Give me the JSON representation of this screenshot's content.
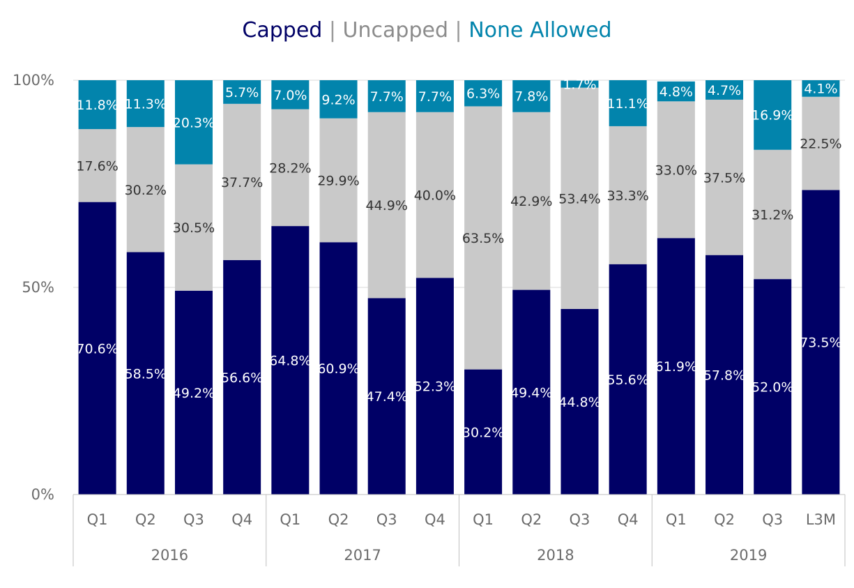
{
  "legend_title": {
    "capped": "Capped",
    "uncapped": "Uncapped",
    "none_allowed": "None Allowed",
    "separator": "|"
  },
  "colors": {
    "capped": "#000066",
    "uncapped": "#c9c9c9",
    "none_allowed": "#0284ac",
    "capped_text": "#ffffff",
    "uncapped_text": "#333333",
    "none_allowed_text": "#ffffff",
    "axis_text": "#6b6b6b",
    "gridline": "#d9d9d9",
    "axis_line": "#bfbfbf"
  },
  "chart_data": {
    "type": "bar",
    "stacked": true,
    "percent_stacked": true,
    "categories": [
      "Q1",
      "Q2",
      "Q3",
      "Q4",
      "Q1",
      "Q2",
      "Q3",
      "Q4",
      "Q1",
      "Q2",
      "Q3",
      "Q4",
      "Q1",
      "Q2",
      "Q3",
      "L3M"
    ],
    "groups": [
      {
        "label": "2016",
        "count": 4
      },
      {
        "label": "2017",
        "count": 4
      },
      {
        "label": "2018",
        "count": 4
      },
      {
        "label": "2019",
        "count": 4
      }
    ],
    "series": [
      {
        "name": "Capped",
        "values": [
          70.6,
          58.5,
          49.2,
          56.6,
          64.8,
          60.9,
          47.4,
          52.3,
          30.2,
          49.4,
          44.8,
          55.6,
          61.9,
          57.8,
          52.0,
          73.5
        ]
      },
      {
        "name": "Uncapped",
        "values": [
          17.6,
          30.2,
          30.5,
          37.7,
          28.2,
          29.9,
          44.9,
          40.0,
          63.5,
          42.9,
          53.4,
          33.3,
          33.0,
          37.5,
          31.2,
          22.5
        ]
      },
      {
        "name": "None Allowed",
        "values": [
          11.8,
          11.3,
          20.3,
          5.7,
          7.0,
          9.2,
          7.7,
          7.7,
          6.3,
          7.8,
          1.7,
          11.1,
          4.8,
          4.7,
          16.9,
          4.1
        ]
      }
    ],
    "data_labels": {
      "Capped": [
        "70.6%",
        "58.5%",
        "49.2%",
        "56.6%",
        "64.8%",
        "60.9%",
        "47.4%",
        "52.3%",
        "30.2%",
        "49.4%",
        "44.8%",
        "55.6%",
        "61.9%",
        "57.8%",
        "52.0%",
        "73.5%"
      ],
      "Uncapped": [
        "17.6%",
        "30.2%",
        "30.5%",
        "37.7%",
        "28.2%",
        "29.9%",
        "44.9%",
        "40.0%",
        "63.5%",
        "42.9%",
        "53.4%",
        "33.3%",
        "33.0%",
        "37.5%",
        "31.2%",
        "22.5%"
      ],
      "None Allowed": [
        "11.8%",
        "11.3%",
        "20.3%",
        "5.7%",
        "7.0%",
        "9.2%",
        "7.7%",
        "7.7%",
        "6.3%",
        "7.8%",
        "1.7%",
        "11.1%",
        "4.8%",
        "4.7%",
        "16.9%",
        "4.1%"
      ]
    },
    "y_ticks": [
      "0%",
      "50%",
      "100%"
    ],
    "ylim": [
      0,
      100
    ],
    "grid": true,
    "legend": "top-center title"
  }
}
